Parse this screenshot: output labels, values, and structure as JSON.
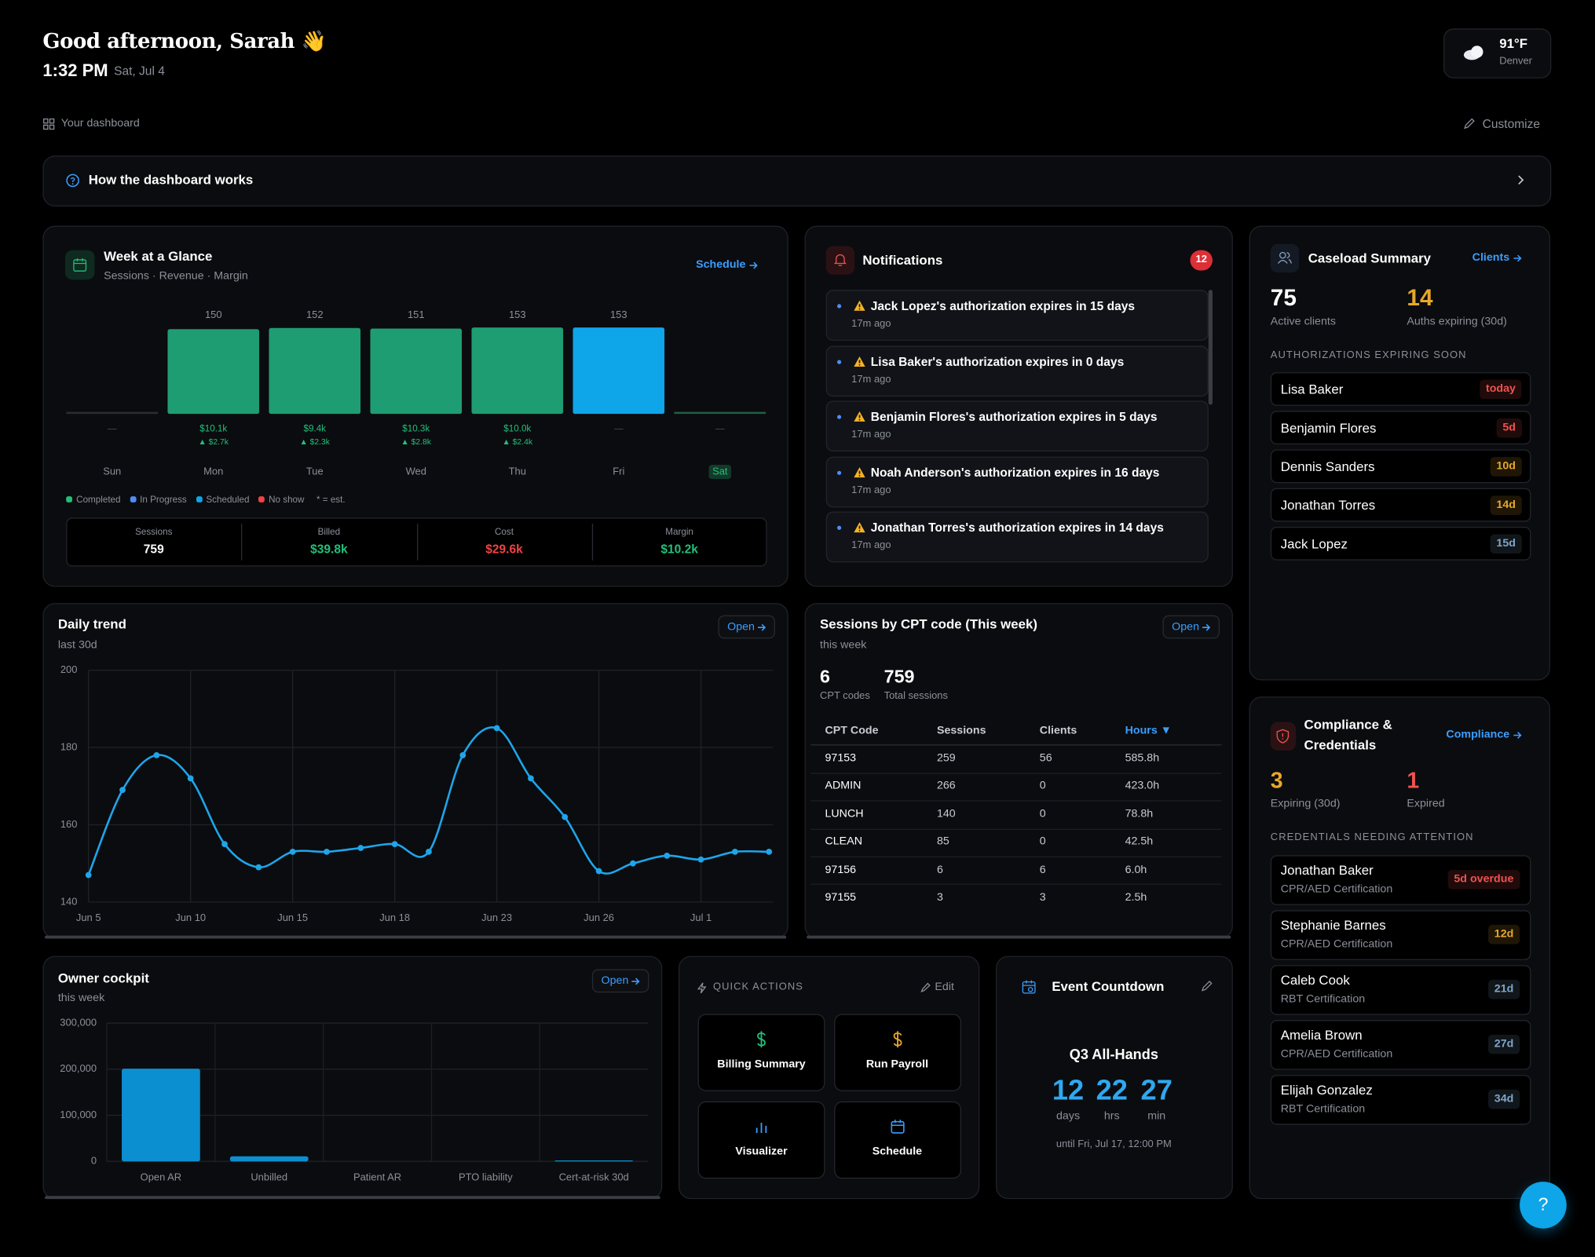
{
  "header": {
    "greeting": "Good afternoon, Sarah 👋",
    "time": "1:32 PM",
    "date": "Sat, Jul 4"
  },
  "weather": {
    "temperature": "91°F",
    "city": "Denver"
  },
  "toolbar": {
    "label": "Your dashboard",
    "action": "Customize"
  },
  "help_banner": {
    "title": "How the dashboard works"
  },
  "chart_data": [
    {
      "type": "bar",
      "title": "Week at a Glance",
      "subtitle": "Sessions · Revenue · Margin",
      "categories": [
        "Sun",
        "Mon",
        "Tue",
        "Wed",
        "Thu",
        "Fri",
        "Sat"
      ],
      "values": [
        null,
        150,
        152,
        151,
        153,
        153,
        null
      ],
      "colors": [
        null,
        "#1f9d72",
        "#1f9d72",
        "#1f9d72",
        "#1f9d72",
        "#0ea5e9",
        null
      ],
      "revenue_labels": [
        "—",
        "$10.1k",
        "$9.4k",
        "$10.3k",
        "$10.0k",
        "—",
        "—"
      ],
      "margin_labels": [
        null,
        "▲ $2.7k",
        "▲ $2.3k",
        "▲ $2.8k",
        "▲ $2.4k",
        null,
        null
      ],
      "highlight_category": 6,
      "ylim": [
        0,
        153
      ],
      "legend": [
        {
          "name": "Completed",
          "color": "#22c07a"
        },
        {
          "name": "In Progress",
          "color": "#4f8cf7"
        },
        {
          "name": "Scheduled",
          "color": "#0ea5e9"
        },
        {
          "name": "No show",
          "color": "#ef4444"
        }
      ],
      "legend_note": "* = est."
    },
    {
      "type": "line",
      "title": "Daily trend",
      "subtitle": "last 30d",
      "categories": [
        "Jun 5",
        null,
        null,
        "Jun 10",
        null,
        null,
        "Jun 15",
        null,
        null,
        "Jun 18",
        null,
        null,
        "Jun 23",
        null,
        null,
        "Jun 26",
        null,
        null,
        "Jul 1",
        null,
        null
      ],
      "values": [
        147,
        169,
        178,
        172,
        155,
        149,
        153,
        153,
        154,
        155,
        153,
        178,
        185,
        172,
        162,
        148,
        150,
        152,
        151,
        153,
        153
      ],
      "color": "#1ea5ea",
      "ylim": [
        140,
        200
      ],
      "yticks": [
        140,
        160,
        180,
        200
      ],
      "grid": true
    },
    {
      "type": "bar",
      "title": "Owner cockpit",
      "subtitle": "this week",
      "categories": [
        "Open AR",
        "Unbilled",
        "Patient AR",
        "PTO liability",
        "Cert-at-risk 30d"
      ],
      "values": [
        201000,
        11000,
        0,
        0,
        2000
      ],
      "color": "#0b8fd0",
      "ylim": [
        0,
        300000
      ],
      "yticks": [
        0,
        {
          "value": 100000,
          "label": "100,000"
        },
        {
          "value": 200000,
          "label": "200,000"
        },
        {
          "value": 300000,
          "label": "300,000"
        }
      ],
      "grid": true
    }
  ],
  "week_panel": {
    "link": "Schedule",
    "stats": [
      {
        "label": "Sessions",
        "value": "759",
        "color": "#ffffff"
      },
      {
        "label": "Billed",
        "value": "$39.8k",
        "color": "#22c07a"
      },
      {
        "label": "Cost",
        "value": "$29.6k",
        "color": "#ef4444"
      },
      {
        "label": "Margin",
        "value": "$10.2k",
        "color": "#22c07a"
      }
    ]
  },
  "notifications": {
    "title": "Notifications",
    "count": 12,
    "items": [
      {
        "text": "Jack Lopez's authorization expires in 15 days",
        "time": "17m ago"
      },
      {
        "text": "Lisa Baker's authorization expires in 0 days",
        "time": "17m ago"
      },
      {
        "text": "Benjamin Flores's authorization expires in 5 days",
        "time": "17m ago"
      },
      {
        "text": "Noah Anderson's authorization expires in 16 days",
        "time": "17m ago"
      },
      {
        "text": "Jonathan Torres's authorization expires in 14 days",
        "time": "17m ago"
      }
    ]
  },
  "caseload": {
    "title": "Caseload Summary",
    "link": "Clients",
    "stats": [
      {
        "value": 75,
        "label": "Active clients",
        "color": "#ffffff"
      },
      {
        "value": 14,
        "label": "Auths expiring (30d)",
        "color": "#e6a82a"
      }
    ],
    "section": "AUTHORIZATIONS EXPIRING SOON",
    "rows": [
      {
        "name": "Lisa Baker",
        "badge": "today",
        "color": "#f0524f"
      },
      {
        "name": "Benjamin Flores",
        "badge": "5d",
        "color": "#f0524f"
      },
      {
        "name": "Dennis Sanders",
        "badge": "10d",
        "color": "#e6a82a"
      },
      {
        "name": "Jonathan Torres",
        "badge": "14d",
        "color": "#e6a82a"
      },
      {
        "name": "Jack Lopez",
        "badge": "15d",
        "color": "#7fa6c8"
      }
    ]
  },
  "trend_panel": {
    "link": "Open"
  },
  "cpt": {
    "title": "Sessions by CPT code (This week)",
    "subtitle": "this week",
    "link": "Open",
    "stats": [
      {
        "value": 6,
        "label": "CPT codes"
      },
      {
        "value": 759,
        "label": "Total sessions"
      }
    ],
    "columns": [
      "CPT Code",
      "Sessions",
      "Clients",
      "Hours ▼"
    ],
    "sorted_column": 3,
    "rows": [
      [
        "97153",
        "259",
        "56",
        "585.8h"
      ],
      [
        "ADMIN",
        "266",
        "0",
        "423.0h"
      ],
      [
        "LUNCH",
        "140",
        "0",
        "78.8h"
      ],
      [
        "CLEAN",
        "85",
        "0",
        "42.5h"
      ],
      [
        "97156",
        "6",
        "6",
        "6.0h"
      ],
      [
        "97155",
        "3",
        "3",
        "2.5h"
      ]
    ]
  },
  "compliance": {
    "title": "Compliance & Credentials",
    "link": "Compliance",
    "stats": [
      {
        "value": 3,
        "label": "Expiring (30d)",
        "color": "#e6a82a"
      },
      {
        "value": 1,
        "label": "Expired",
        "color": "#f0524f"
      }
    ],
    "section": "CREDENTIALS NEEDING ATTENTION",
    "rows": [
      {
        "name": "Jonathan Baker",
        "credential": "CPR/AED Certification",
        "badge": "5d overdue",
        "color": "#f0524f"
      },
      {
        "name": "Stephanie Barnes",
        "credential": "CPR/AED Certification",
        "badge": "12d",
        "color": "#e6a82a"
      },
      {
        "name": "Caleb Cook",
        "credential": "RBT Certification",
        "badge": "21d",
        "color": "#7fa6c8"
      },
      {
        "name": "Amelia Brown",
        "credential": "CPR/AED Certification",
        "badge": "27d",
        "color": "#7fa6c8"
      },
      {
        "name": "Elijah Gonzalez",
        "credential": "RBT Certification",
        "badge": "34d",
        "color": "#7fa6c8"
      }
    ]
  },
  "owner_panel": {
    "link": "Open"
  },
  "quick_actions": {
    "title": "QUICK ACTIONS",
    "edit": "Edit",
    "actions": [
      {
        "label": "Billing Summary",
        "icon_color": "#22c07a"
      },
      {
        "label": "Run Payroll",
        "icon_color": "#e6a82a"
      },
      {
        "label": "Visualizer",
        "icon_color": "#3b9eff"
      },
      {
        "label": "Schedule",
        "icon_color": "#3b9eff"
      }
    ]
  },
  "event": {
    "title": "Event Countdown",
    "name": "Q3 All-Hands",
    "units": [
      {
        "value": 12,
        "label": "days"
      },
      {
        "value": 22,
        "label": "hrs"
      },
      {
        "value": 27,
        "label": "min"
      }
    ],
    "until": "until Fri, Jul 17, 12:00 PM"
  },
  "help_button": "?"
}
